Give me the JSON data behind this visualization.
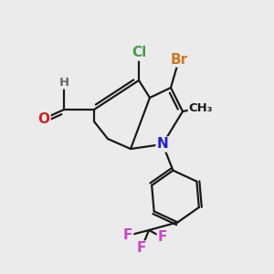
{
  "background_color": "#ebebeb",
  "bond_color": "#1a1a1a",
  "bond_width": 1.6,
  "atom_colors": {
    "Br": "#cc7722",
    "Cl": "#4a9a4a",
    "N": "#2020cc",
    "O": "#cc2020",
    "F": "#cc44cc",
    "H": "#666666",
    "C": "#1a1a1a"
  },
  "font_size_atoms": 11,
  "font_size_small": 9.5
}
